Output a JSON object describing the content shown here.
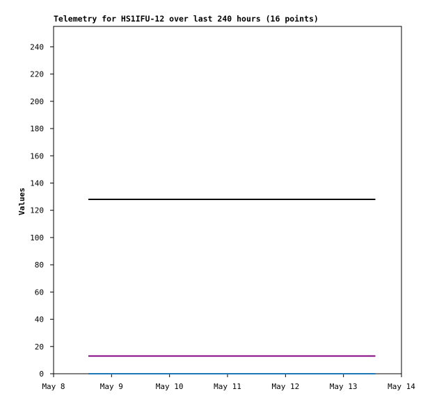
{
  "chart_data": {
    "type": "line",
    "title": "Telemetry for HS1IFU-12 over last 240 hours (16 points)",
    "ylabel": "Values",
    "x": [
      8.6,
      8.93,
      9.26,
      9.59,
      9.92,
      10.25,
      10.58,
      10.91,
      11.24,
      11.57,
      11.9,
      12.23,
      12.56,
      12.89,
      13.22,
      13.55
    ],
    "series": [
      {
        "color": "#000000",
        "values": [
          128,
          128,
          128,
          128,
          128,
          128,
          128,
          128,
          128,
          128,
          128,
          128,
          128,
          128,
          128,
          128
        ]
      },
      {
        "color": "#800080",
        "values": [
          13,
          13,
          13,
          13,
          13,
          13,
          13,
          13,
          13,
          13,
          13,
          13,
          13,
          13,
          13,
          13
        ]
      },
      {
        "color": "#1f77b4",
        "values": [
          0,
          0,
          0,
          0,
          0,
          0,
          0,
          0,
          0,
          0,
          0,
          0,
          0,
          0,
          0,
          0
        ]
      }
    ],
    "xlim": [
      8,
      14
    ],
    "xticks": [
      {
        "value": 8,
        "label": "May 8"
      },
      {
        "value": 9,
        "label": "May 9"
      },
      {
        "value": 10,
        "label": "May 10"
      },
      {
        "value": 11,
        "label": "May 11"
      },
      {
        "value": 12,
        "label": "May 12"
      },
      {
        "value": 13,
        "label": "May 13"
      },
      {
        "value": 14,
        "label": "May 14"
      }
    ],
    "ylim": [
      0,
      255
    ],
    "yticks": [
      0,
      20,
      40,
      60,
      80,
      100,
      120,
      140,
      160,
      180,
      200,
      220,
      240
    ]
  }
}
